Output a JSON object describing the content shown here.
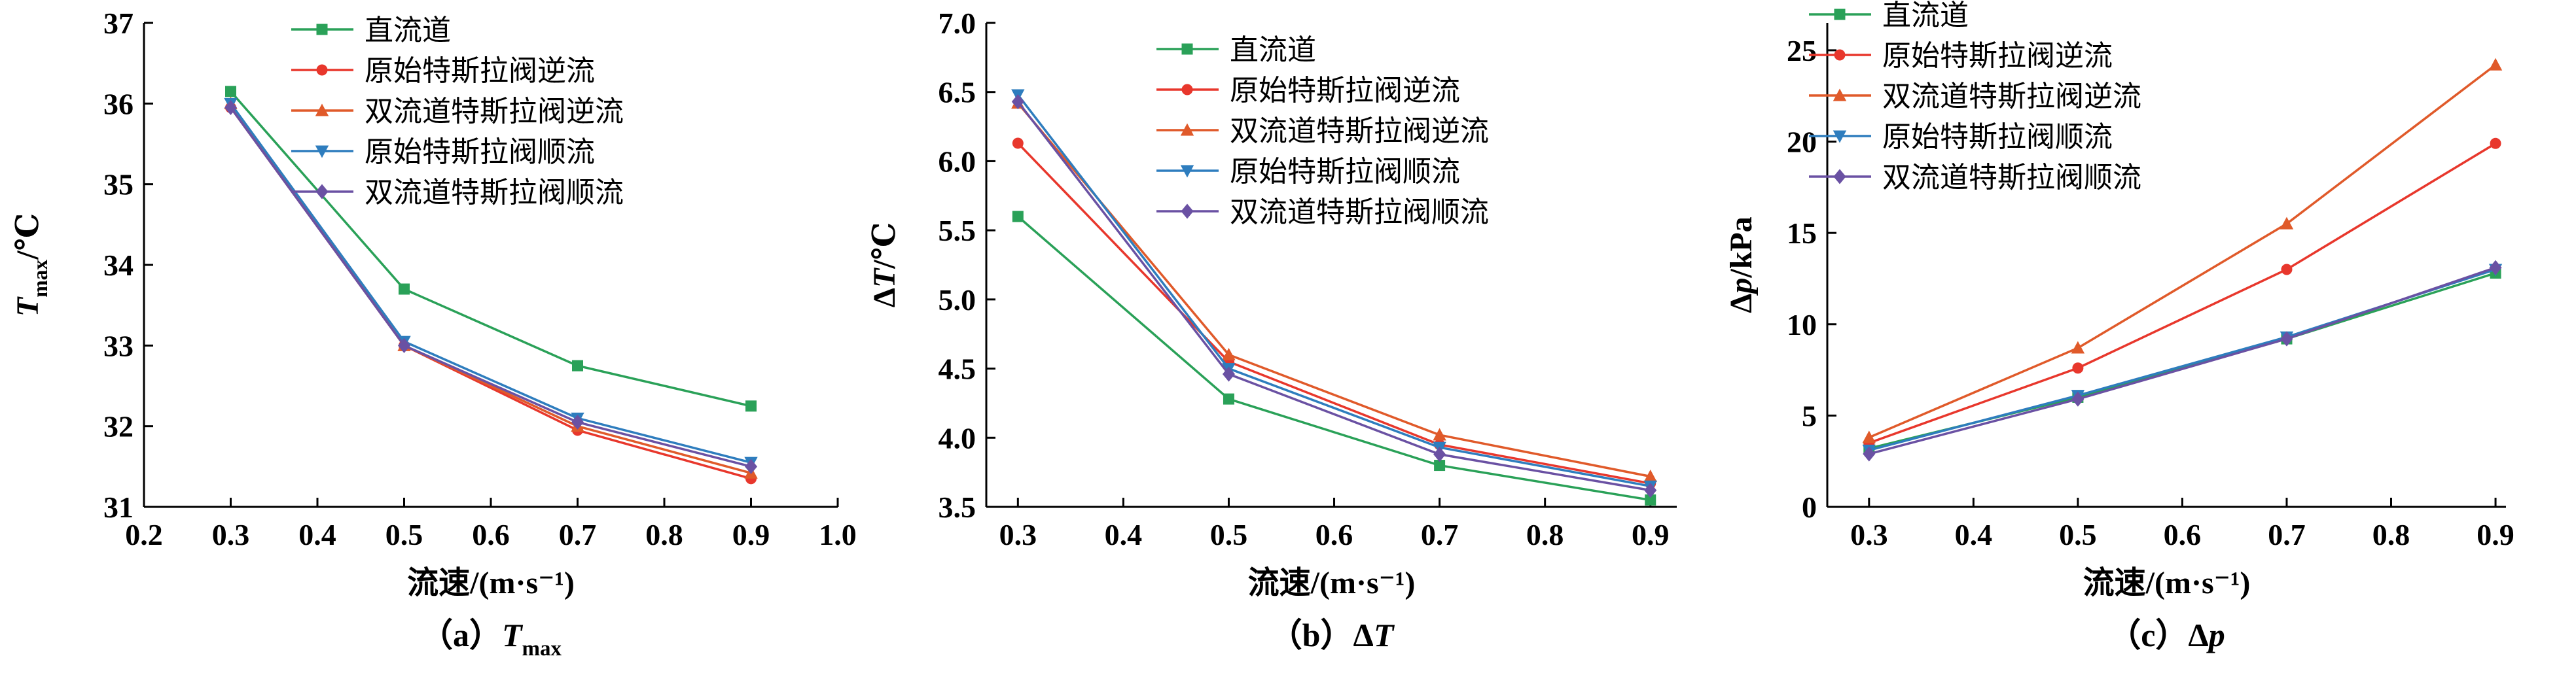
{
  "figure": {
    "background": "#ffffff",
    "axis_color": "#000000",
    "series_defs": [
      {
        "label": "直流道",
        "color": "#2aa158",
        "marker": "square"
      },
      {
        "label": "原始特斯拉阀逆流",
        "color": "#e8372c",
        "marker": "circle"
      },
      {
        "label": "双流道特斯拉阀逆流",
        "color": "#e05a2a",
        "marker": "triangle-up"
      },
      {
        "label": "原始特斯拉阀顺流",
        "color": "#2e7dbe",
        "marker": "triangle-down"
      },
      {
        "label": "双流道特斯拉阀顺流",
        "color": "#6a51a3",
        "marker": "diamond"
      }
    ]
  },
  "chart_data": [
    {
      "type": "line",
      "panel": "a",
      "caption_parts": [
        {
          "t": "（a）"
        },
        {
          "t": "T",
          "s": "i"
        },
        {
          "t": "max",
          "s": "sub"
        }
      ],
      "xlabel": "流速/(m·s⁻¹)",
      "ylabel_parts": [
        {
          "t": "T",
          "s": "i"
        },
        {
          "t": "max",
          "s": "sub"
        },
        {
          "t": "/℃"
        }
      ],
      "xlim": [
        0.2,
        1.0
      ],
      "ylim": [
        31,
        37
      ],
      "xticks": [
        "0.2",
        "0.3",
        "0.4",
        "0.5",
        "0.6",
        "0.7",
        "0.8",
        "0.9",
        "1.0"
      ],
      "yticks": [
        "31",
        "32",
        "33",
        "34",
        "35",
        "36",
        "37"
      ],
      "grid": false,
      "legend_position": "top-right",
      "x": [
        0.3,
        0.5,
        0.7,
        0.9
      ],
      "series": [
        {
          "name": "直流道",
          "values": [
            36.15,
            33.7,
            32.75,
            32.25
          ]
        },
        {
          "name": "原始特斯拉阀逆流",
          "values": [
            35.95,
            33.0,
            31.95,
            31.35
          ]
        },
        {
          "name": "双流道特斯拉阀逆流",
          "values": [
            36.0,
            33.0,
            32.0,
            31.42
          ]
        },
        {
          "name": "原始特斯拉阀顺流",
          "values": [
            36.0,
            33.05,
            32.1,
            31.55
          ]
        },
        {
          "name": "双流道特斯拉阀顺流",
          "values": [
            35.95,
            33.0,
            32.05,
            31.5
          ]
        }
      ]
    },
    {
      "type": "line",
      "panel": "b",
      "caption_parts": [
        {
          "t": "（b）"
        },
        {
          "t": "Δ"
        },
        {
          "t": "T",
          "s": "i"
        }
      ],
      "xlabel": "流速/(m·s⁻¹)",
      "ylabel_parts": [
        {
          "t": "Δ"
        },
        {
          "t": "T",
          "s": "i"
        },
        {
          "t": "/℃"
        }
      ],
      "xlim": [
        0.27,
        0.925
      ],
      "ylim": [
        3.5,
        7.0
      ],
      "xticks": [
        "0.3",
        "0.4",
        "0.5",
        "0.6",
        "0.7",
        "0.8",
        "0.9"
      ],
      "yticks": [
        "3.5",
        "4.0",
        "4.5",
        "5.0",
        "5.5",
        "6.0",
        "6.5",
        "7.0"
      ],
      "grid": false,
      "legend_position": "top-right",
      "x": [
        0.3,
        0.5,
        0.7,
        0.9
      ],
      "series": [
        {
          "name": "直流道",
          "values": [
            5.6,
            4.28,
            3.8,
            3.55
          ]
        },
        {
          "name": "原始特斯拉阀逆流",
          "values": [
            6.13,
            4.55,
            3.95,
            3.67
          ]
        },
        {
          "name": "双流道特斯拉阀逆流",
          "values": [
            6.42,
            4.6,
            4.02,
            3.72
          ]
        },
        {
          "name": "原始特斯拉阀顺流",
          "values": [
            6.48,
            4.5,
            3.93,
            3.65
          ]
        },
        {
          "name": "双流道特斯拉阀顺流",
          "values": [
            6.43,
            4.46,
            3.88,
            3.62
          ]
        }
      ]
    },
    {
      "type": "line",
      "panel": "c",
      "caption_parts": [
        {
          "t": "（c）"
        },
        {
          "t": "Δ"
        },
        {
          "t": "p",
          "s": "i"
        }
      ],
      "xlabel": "流速/(m·s⁻¹)",
      "ylabel_parts": [
        {
          "t": "Δ"
        },
        {
          "t": "p",
          "s": "i"
        },
        {
          "t": "/kPa"
        }
      ],
      "xlim": [
        0.26,
        0.91
      ],
      "ylim": [
        0,
        26.5
      ],
      "xticks": [
        "0.3",
        "0.4",
        "0.5",
        "0.6",
        "0.7",
        "0.8",
        "0.9"
      ],
      "yticks": [
        "0",
        "5",
        "10",
        "15",
        "20",
        "25"
      ],
      "grid": false,
      "legend_position": "top-left",
      "x": [
        0.3,
        0.5,
        0.7,
        0.9
      ],
      "series": [
        {
          "name": "直流道",
          "values": [
            3.2,
            6.0,
            9.2,
            12.8
          ]
        },
        {
          "name": "原始特斯拉阀逆流",
          "values": [
            3.5,
            7.6,
            13.0,
            19.9
          ]
        },
        {
          "name": "双流道特斯拉阀逆流",
          "values": [
            3.8,
            8.7,
            15.5,
            24.2
          ]
        },
        {
          "name": "原始特斯拉阀顺流",
          "values": [
            3.1,
            6.1,
            9.3,
            13.0
          ]
        },
        {
          "name": "双流道特斯拉阀顺流",
          "values": [
            2.9,
            5.9,
            9.2,
            13.1
          ]
        }
      ]
    }
  ]
}
